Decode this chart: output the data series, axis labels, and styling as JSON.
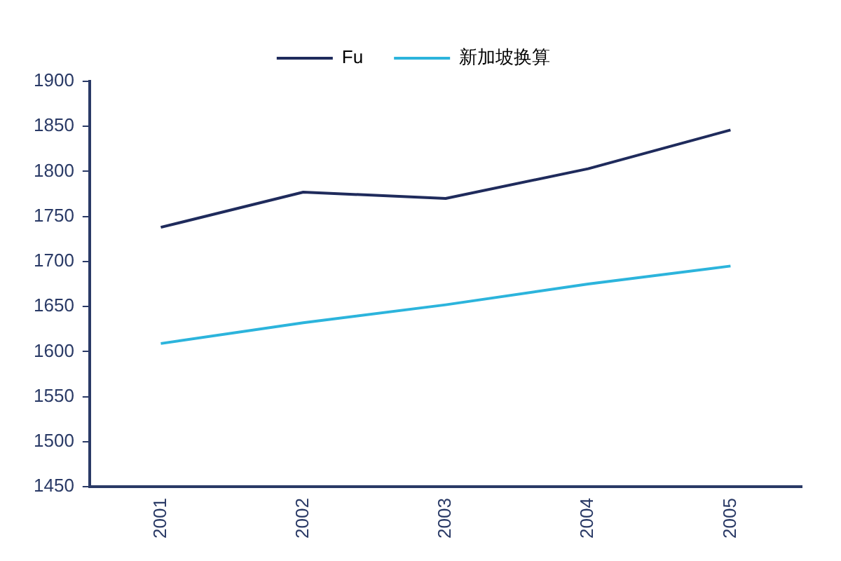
{
  "chart_data": {
    "type": "line",
    "categories": [
      "2001",
      "2002",
      "2003",
      "2004",
      "2005"
    ],
    "series": [
      {
        "name": "Fu",
        "color": "#1f2b5c",
        "values": [
          1738,
          1777,
          1770,
          1803,
          1846
        ]
      },
      {
        "name": "新加坡换算",
        "color": "#2cb4dc",
        "values": [
          1609,
          1632,
          1652,
          1675,
          1695
        ]
      }
    ],
    "ylim": [
      1450,
      1900
    ],
    "yticks": [
      1450,
      1500,
      1550,
      1600,
      1650,
      1700,
      1750,
      1800,
      1850,
      1900
    ],
    "grid": false,
    "legend": "top",
    "marker": "none",
    "line_style": "solid"
  }
}
